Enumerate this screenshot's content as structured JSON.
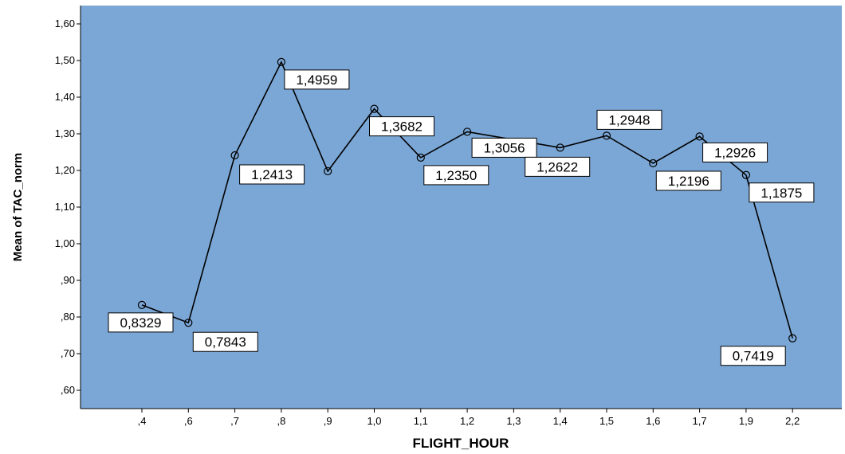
{
  "chart_data": {
    "type": "line",
    "xlabel": "FLIGHT_HOUR",
    "ylabel": "Mean of TAC_norm",
    "categories": [
      ",4",
      ",6",
      ",7",
      ",8",
      ",9",
      "1,0",
      "1,1",
      "1,2",
      "1,3",
      "1,4",
      "1,5",
      "1,6",
      "1,7",
      "1,9",
      "2,2"
    ],
    "values": [
      0.8329,
      0.7843,
      1.2413,
      1.4959,
      1.198,
      1.3682,
      1.235,
      1.3056,
      null,
      1.2622,
      1.2948,
      1.2196,
      1.2926,
      1.1875,
      0.7419
    ],
    "data_labels": [
      "0,8329",
      "0,7843",
      "1,2413",
      "1,4959",
      "",
      "1,3682",
      "1,2350",
      "1,3056",
      "",
      "1,2622",
      "1,2948",
      "1,2196",
      "1,2926",
      "1,1875",
      "0,7419"
    ],
    "ylim": [
      0.55,
      1.65
    ],
    "yticks": [
      0.6,
      0.7,
      0.8,
      0.9,
      1.0,
      1.1,
      1.2,
      1.3,
      1.4,
      1.5,
      1.6
    ],
    "ytick_labels": [
      ",60",
      ",70",
      ",80",
      ",90",
      "1,00",
      "1,10",
      "1,20",
      "1,30",
      "1,40",
      "1,50",
      "1,60"
    ],
    "grid": false,
    "legend": "none",
    "colors": {
      "plot_background": "#7ba7d6",
      "line": "#000000",
      "label_box": "#ffffff"
    }
  }
}
